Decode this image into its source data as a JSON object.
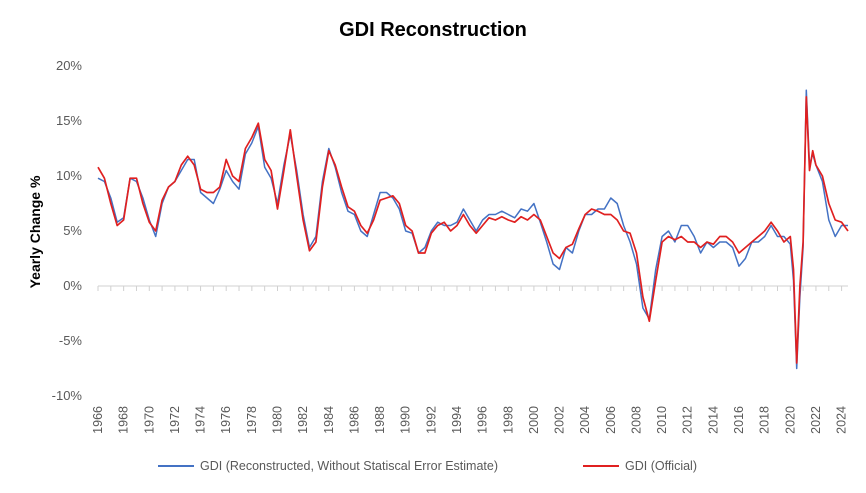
{
  "chart_data": {
    "type": "line",
    "title": "GDI Reconstruction",
    "xlabel": "",
    "ylabel": "Yearly Change %",
    "xlim": [
      1966,
      2024.5
    ],
    "ylim": [
      -10,
      20
    ],
    "grid": false,
    "legend_position": "bottom",
    "y_tick_labels": [
      "20%",
      "15%",
      "10%",
      "5%",
      "0%",
      "-5%",
      "-10%"
    ],
    "y_tick_values": [
      20,
      15,
      10,
      5,
      0,
      -5,
      -10
    ],
    "x_tick_labels": [
      "1966",
      "1968",
      "1970",
      "1972",
      "1974",
      "1976",
      "1978",
      "1980",
      "1982",
      "1984",
      "1986",
      "1988",
      "1990",
      "1992",
      "1994",
      "1996",
      "1998",
      "2000",
      "2002",
      "2004",
      "2006",
      "2008",
      "2010",
      "2012",
      "2014",
      "2016",
      "2018",
      "2020",
      "2022",
      "2024"
    ],
    "series": [
      {
        "name": "GDI (Reconstructed, Without Statiscal Error Estimate)",
        "color": "#4472C4",
        "x": [
          1966.0,
          1966.5,
          1967.0,
          1967.5,
          1968.0,
          1968.5,
          1969.0,
          1969.5,
          1970.0,
          1970.5,
          1971.0,
          1971.5,
          1972.0,
          1972.5,
          1973.0,
          1973.5,
          1974.0,
          1974.5,
          1975.0,
          1975.5,
          1976.0,
          1976.5,
          1977.0,
          1977.5,
          1978.0,
          1978.5,
          1979.0,
          1979.5,
          1980.0,
          1980.5,
          1981.0,
          1981.5,
          1982.0,
          1982.5,
          1983.0,
          1983.5,
          1984.0,
          1984.5,
          1985.0,
          1985.5,
          1986.0,
          1986.5,
          1987.0,
          1987.5,
          1988.0,
          1988.5,
          1989.0,
          1989.5,
          1990.0,
          1990.5,
          1991.0,
          1991.5,
          1992.0,
          1992.5,
          1993.0,
          1993.5,
          1994.0,
          1994.5,
          1995.0,
          1995.5,
          1996.0,
          1996.5,
          1997.0,
          1997.5,
          1998.0,
          1998.5,
          1999.0,
          1999.5,
          2000.0,
          2000.5,
          2001.0,
          2001.5,
          2002.0,
          2002.5,
          2003.0,
          2003.5,
          2004.0,
          2004.5,
          2005.0,
          2005.5,
          2006.0,
          2006.5,
          2007.0,
          2007.5,
          2008.0,
          2008.5,
          2009.0,
          2009.5,
          2010.0,
          2010.5,
          2011.0,
          2011.5,
          2012.0,
          2012.5,
          2013.0,
          2013.5,
          2014.0,
          2014.5,
          2015.0,
          2015.5,
          2016.0,
          2016.5,
          2017.0,
          2017.5,
          2018.0,
          2018.5,
          2019.0,
          2019.5,
          2020.0,
          2020.25,
          2020.5,
          2020.75,
          2021.0,
          2021.25,
          2021.5,
          2021.75,
          2022.0,
          2022.5,
          2023.0,
          2023.5,
          2024.0,
          2024.5
        ],
        "values": [
          9.8,
          9.5,
          8.0,
          5.8,
          6.2,
          9.8,
          9.5,
          8.0,
          6.0,
          4.5,
          7.5,
          9.0,
          9.5,
          10.5,
          11.5,
          11.5,
          8.5,
          8.0,
          7.5,
          8.8,
          10.5,
          9.5,
          8.8,
          12.0,
          13.0,
          14.5,
          10.8,
          9.8,
          7.5,
          11.0,
          13.8,
          10.5,
          6.5,
          3.5,
          4.5,
          9.5,
          12.5,
          10.8,
          8.5,
          6.8,
          6.5,
          5.0,
          4.5,
          6.5,
          8.5,
          8.5,
          8.0,
          7.0,
          5.0,
          4.8,
          3.0,
          3.5,
          5.0,
          5.8,
          5.5,
          5.5,
          5.8,
          7.0,
          6.0,
          5.0,
          6.0,
          6.5,
          6.5,
          6.8,
          6.5,
          6.2,
          7.0,
          6.8,
          7.5,
          5.8,
          4.0,
          2.0,
          1.5,
          3.5,
          3.0,
          5.0,
          6.5,
          6.5,
          7.0,
          7.0,
          8.0,
          7.5,
          5.5,
          4.0,
          2.0,
          -2.0,
          -3.0,
          1.5,
          4.5,
          5.0,
          4.0,
          5.5,
          5.5,
          4.5,
          3.0,
          4.0,
          3.5,
          4.0,
          4.0,
          3.5,
          1.8,
          2.5,
          4.0,
          4.0,
          4.5,
          5.5,
          4.5,
          4.5,
          3.8,
          0.5,
          -7.5,
          -1.0,
          3.5,
          17.8,
          11.0,
          12.0,
          11.0,
          9.5,
          6.0,
          4.5,
          5.5,
          5.5
        ]
      },
      {
        "name": "GDI (Official)",
        "color": "#E02020",
        "x": [
          1966.0,
          1966.5,
          1967.0,
          1967.5,
          1968.0,
          1968.5,
          1969.0,
          1969.5,
          1970.0,
          1970.5,
          1971.0,
          1971.5,
          1972.0,
          1972.5,
          1973.0,
          1973.5,
          1974.0,
          1974.5,
          1975.0,
          1975.5,
          1976.0,
          1976.5,
          1977.0,
          1977.5,
          1978.0,
          1978.5,
          1979.0,
          1979.5,
          1980.0,
          1980.5,
          1981.0,
          1981.5,
          1982.0,
          1982.5,
          1983.0,
          1983.5,
          1984.0,
          1984.5,
          1985.0,
          1985.5,
          1986.0,
          1986.5,
          1987.0,
          1987.5,
          1988.0,
          1988.5,
          1989.0,
          1989.5,
          1990.0,
          1990.5,
          1991.0,
          1991.5,
          1992.0,
          1992.5,
          1993.0,
          1993.5,
          1994.0,
          1994.5,
          1995.0,
          1995.5,
          1996.0,
          1996.5,
          1997.0,
          1997.5,
          1998.0,
          1998.5,
          1999.0,
          1999.5,
          2000.0,
          2000.5,
          2001.0,
          2001.5,
          2002.0,
          2002.5,
          2003.0,
          2003.5,
          2004.0,
          2004.5,
          2005.0,
          2005.5,
          2006.0,
          2006.5,
          2007.0,
          2007.5,
          2008.0,
          2008.5,
          2009.0,
          2009.5,
          2010.0,
          2010.5,
          2011.0,
          2011.5,
          2012.0,
          2012.5,
          2013.0,
          2013.5,
          2014.0,
          2014.5,
          2015.0,
          2015.5,
          2016.0,
          2016.5,
          2017.0,
          2017.5,
          2018.0,
          2018.5,
          2019.0,
          2019.5,
          2020.0,
          2020.25,
          2020.5,
          2020.75,
          2021.0,
          2021.25,
          2021.5,
          2021.75,
          2022.0,
          2022.5,
          2023.0,
          2023.5,
          2024.0,
          2024.5
        ],
        "values": [
          10.8,
          9.8,
          7.5,
          5.5,
          6.0,
          9.8,
          9.8,
          7.5,
          5.8,
          5.0,
          7.8,
          9.0,
          9.5,
          11.0,
          11.8,
          11.0,
          8.8,
          8.5,
          8.5,
          9.0,
          11.5,
          10.0,
          9.5,
          12.5,
          13.5,
          14.8,
          11.5,
          10.5,
          7.0,
          10.5,
          14.2,
          10.0,
          6.0,
          3.2,
          4.0,
          9.0,
          12.3,
          11.0,
          9.0,
          7.2,
          6.8,
          5.5,
          4.8,
          6.0,
          7.8,
          8.0,
          8.2,
          7.5,
          5.5,
          5.0,
          3.0,
          3.0,
          4.8,
          5.5,
          5.8,
          5.0,
          5.5,
          6.5,
          5.5,
          4.8,
          5.5,
          6.2,
          6.0,
          6.3,
          6.0,
          5.8,
          6.3,
          6.0,
          6.5,
          6.0,
          4.5,
          3.0,
          2.5,
          3.5,
          3.8,
          5.2,
          6.5,
          7.0,
          6.8,
          6.5,
          6.5,
          6.0,
          5.0,
          4.8,
          3.0,
          -1.0,
          -3.2,
          0.5,
          4.0,
          4.5,
          4.2,
          4.5,
          4.0,
          4.0,
          3.5,
          4.0,
          3.8,
          4.5,
          4.5,
          4.0,
          3.0,
          3.5,
          4.0,
          4.5,
          5.0,
          5.8,
          5.0,
          4.0,
          4.5,
          1.5,
          -7.0,
          0.0,
          4.0,
          17.2,
          10.5,
          12.3,
          11.0,
          10.0,
          7.5,
          6.0,
          5.8,
          5.0
        ]
      }
    ]
  }
}
